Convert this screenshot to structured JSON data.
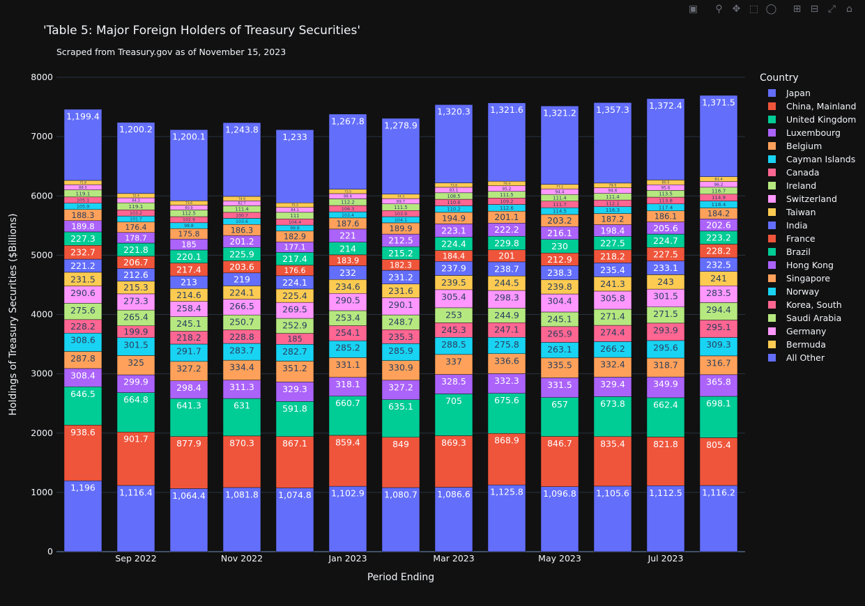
{
  "title": "'Table 5: Major Foreign Holders of Treasury Securities'",
  "subtitle": "Scraped from Treasury.gov as of November 15, 2023",
  "legend_title": "Country",
  "modebar": [
    "camera-icon",
    "zoom-icon",
    "pan-icon",
    "box-select-icon",
    "lasso-select-icon",
    "zoom-in-icon",
    "zoom-out-icon",
    "autoscale-icon",
    "reset-axes-icon"
  ],
  "chart_data": {
    "type": "bar",
    "barmode": "stack",
    "xlabel": "Period Ending",
    "ylabel": "Holdings of Treasury Securities ($Billions)",
    "ylim": [
      0,
      8000
    ],
    "yticks": [
      0,
      1000,
      2000,
      3000,
      4000,
      5000,
      6000,
      7000,
      8000
    ],
    "xtick_labels": [
      "Sep 2022",
      "Nov 2022",
      "Jan 2023",
      "Mar 2023",
      "May 2023",
      "Jul 2023"
    ],
    "xtick_positions": [
      1,
      3,
      5,
      7,
      9,
      11
    ],
    "categories": [
      "Aug 2022",
      "Sep 2022",
      "Oct 2022",
      "Nov 2022",
      "Dec 2022",
      "Jan 2023",
      "Feb 2023",
      "Mar 2023",
      "Apr 2023",
      "May 2023",
      "Jun 2023",
      "Jul 2023",
      "Aug 2023"
    ],
    "legend_position": "right",
    "series": [
      {
        "name": "Japan",
        "color": "#636efa",
        "values": [
          1196,
          1116.4,
          1064.4,
          1081.8,
          1074.8,
          1102.9,
          1080.7,
          1086.6,
          1125.8,
          1096.8,
          1105.6,
          1112.5,
          1116.2
        ]
      },
      {
        "name": "China, Mainland",
        "color": "#ef553b",
        "values": [
          938.6,
          901.7,
          877.9,
          870.3,
          867.1,
          859.4,
          849,
          869.3,
          868.9,
          846.7,
          835.4,
          821.8,
          805.4
        ]
      },
      {
        "name": "United Kingdom",
        "color": "#00cc96",
        "values": [
          646.5,
          664.8,
          641.3,
          631,
          591.8,
          660.7,
          635.1,
          705,
          675.6,
          657,
          673.8,
          662.4,
          698.1
        ]
      },
      {
        "name": "Luxembourg",
        "color": "#ab63fa",
        "values": [
          308.4,
          299.9,
          298.4,
          311.3,
          329.3,
          318.1,
          327.2,
          328.5,
          332.3,
          331.5,
          329.4,
          349.9,
          365.8
        ]
      },
      {
        "name": "Belgium",
        "color": "#ffa15a",
        "values": [
          287.8,
          325,
          327.2,
          334.4,
          351.2,
          331.1,
          330.9,
          337,
          336.6,
          335.5,
          332.4,
          318.7,
          316.7
        ]
      },
      {
        "name": "Cayman Islands",
        "color": "#19d3f3",
        "values": [
          308.6,
          301.5,
          291.7,
          283.7,
          282.7,
          285.2,
          285.9,
          288.5,
          275.8,
          263.1,
          266.2,
          295.6,
          309.3
        ]
      },
      {
        "name": "Canada",
        "color": "#ff6692",
        "values": [
          228.2,
          199.9,
          218.2,
          228.8,
          185,
          254.1,
          235.3,
          245.3,
          247.1,
          265.9,
          274.4,
          293.9,
          295.1
        ]
      },
      {
        "name": "Ireland",
        "color": "#b6e880",
        "values": [
          275.6,
          265.4,
          245.1,
          250.7,
          252.9,
          253.4,
          248.7,
          253,
          244.9,
          245.1,
          271.4,
          271.5,
          294.4
        ]
      },
      {
        "name": "Switzerland",
        "color": "#ff97ff",
        "values": [
          290.6,
          273.3,
          258.4,
          266.5,
          269.5,
          290.5,
          290.1,
          305.4,
          298.3,
          304.4,
          305.8,
          301.5,
          283.5
        ]
      },
      {
        "name": "Taiwan",
        "color": "#fecb52",
        "values": [
          231.5,
          215.3,
          214.6,
          224.1,
          225.4,
          234.6,
          231.6,
          239.5,
          244.5,
          239.8,
          241.3,
          243,
          241
        ]
      },
      {
        "name": "India",
        "color": "#636efa",
        "values": [
          221.2,
          212.6,
          213,
          219,
          224.1,
          232,
          231.2,
          237.9,
          238.7,
          238.3,
          235.4,
          233.1,
          232.5
        ]
      },
      {
        "name": "France",
        "color": "#ef553b",
        "values": [
          232.7,
          206.7,
          217.4,
          203.6,
          176.6,
          183.9,
          182.3,
          184.4,
          201,
          212.9,
          218.2,
          227.5,
          228.2
        ]
      },
      {
        "name": "Brazil",
        "color": "#00cc96",
        "values": [
          227.3,
          221.8,
          220.1,
          225.9,
          217.4,
          214,
          215.2,
          224.4,
          229.8,
          230,
          227.5,
          224.7,
          223.2
        ]
      },
      {
        "name": "Hong Kong",
        "color": "#ab63fa",
        "values": [
          189.8,
          178.7,
          185,
          201.2,
          177.1,
          221,
          212.5,
          223.1,
          222.2,
          216.1,
          198.4,
          205.6,
          202.6
        ]
      },
      {
        "name": "Singapore",
        "color": "#ffa15a",
        "values": [
          188.3,
          176.4,
          175.8,
          186.3,
          182.9,
          187.6,
          189.9,
          194.9,
          201.1,
          203.2,
          187.2,
          186.1,
          184.2
        ]
      },
      {
        "name": "Norway",
        "color": "#19d3f3",
        "values": [
          105.9,
          101.7,
          98.8,
          103.6,
          99.8,
          103.4,
          104.1,
          110.2,
          112.6,
          114.5,
          116.3,
          117.4,
          118.4
        ]
      },
      {
        "name": "Korea, South",
        "color": "#ff6692",
        "values": [
          105.1,
          103.2,
          102.9,
          100.7,
          104.4,
          106.3,
          103.9,
          110.6,
          109.2,
          111.7,
          112.1,
          113.8,
          114.9
        ]
      },
      {
        "name": "Saudi Arabia",
        "color": "#b6e880",
        "values": [
          119.1,
          119.1,
          112.5,
          111.4,
          111,
          112.2,
          111.5,
          108.5,
          111.5,
          111.4,
          111.4,
          113.5,
          116.7
        ]
      },
      {
        "name": "Germany",
        "color": "#ff97ff",
        "values": [
          88.5,
          84.3,
          80.9,
          82.7,
          84.1,
          88.4,
          89.7,
          93.1,
          95.2,
          94.4,
          94.6,
          95.6,
          96.2
        ]
      },
      {
        "name": "Bermuda",
        "color": "#fecb52",
        "values": [
          71.8,
          72.4,
          73.6,
          74.9,
          75.5,
          73.5,
          74.3,
          73.8,
          76.4,
          77.1,
          79.5,
          80.5,
          81.4
        ]
      },
      {
        "name": "All Other",
        "color": "#636efa",
        "values": [
          1199.4,
          1200.2,
          1200.1,
          1243.8,
          1233,
          1267.8,
          1278.9,
          1320.3,
          1321.6,
          1321.2,
          1357.3,
          1372.4,
          1371.5
        ]
      }
    ]
  }
}
